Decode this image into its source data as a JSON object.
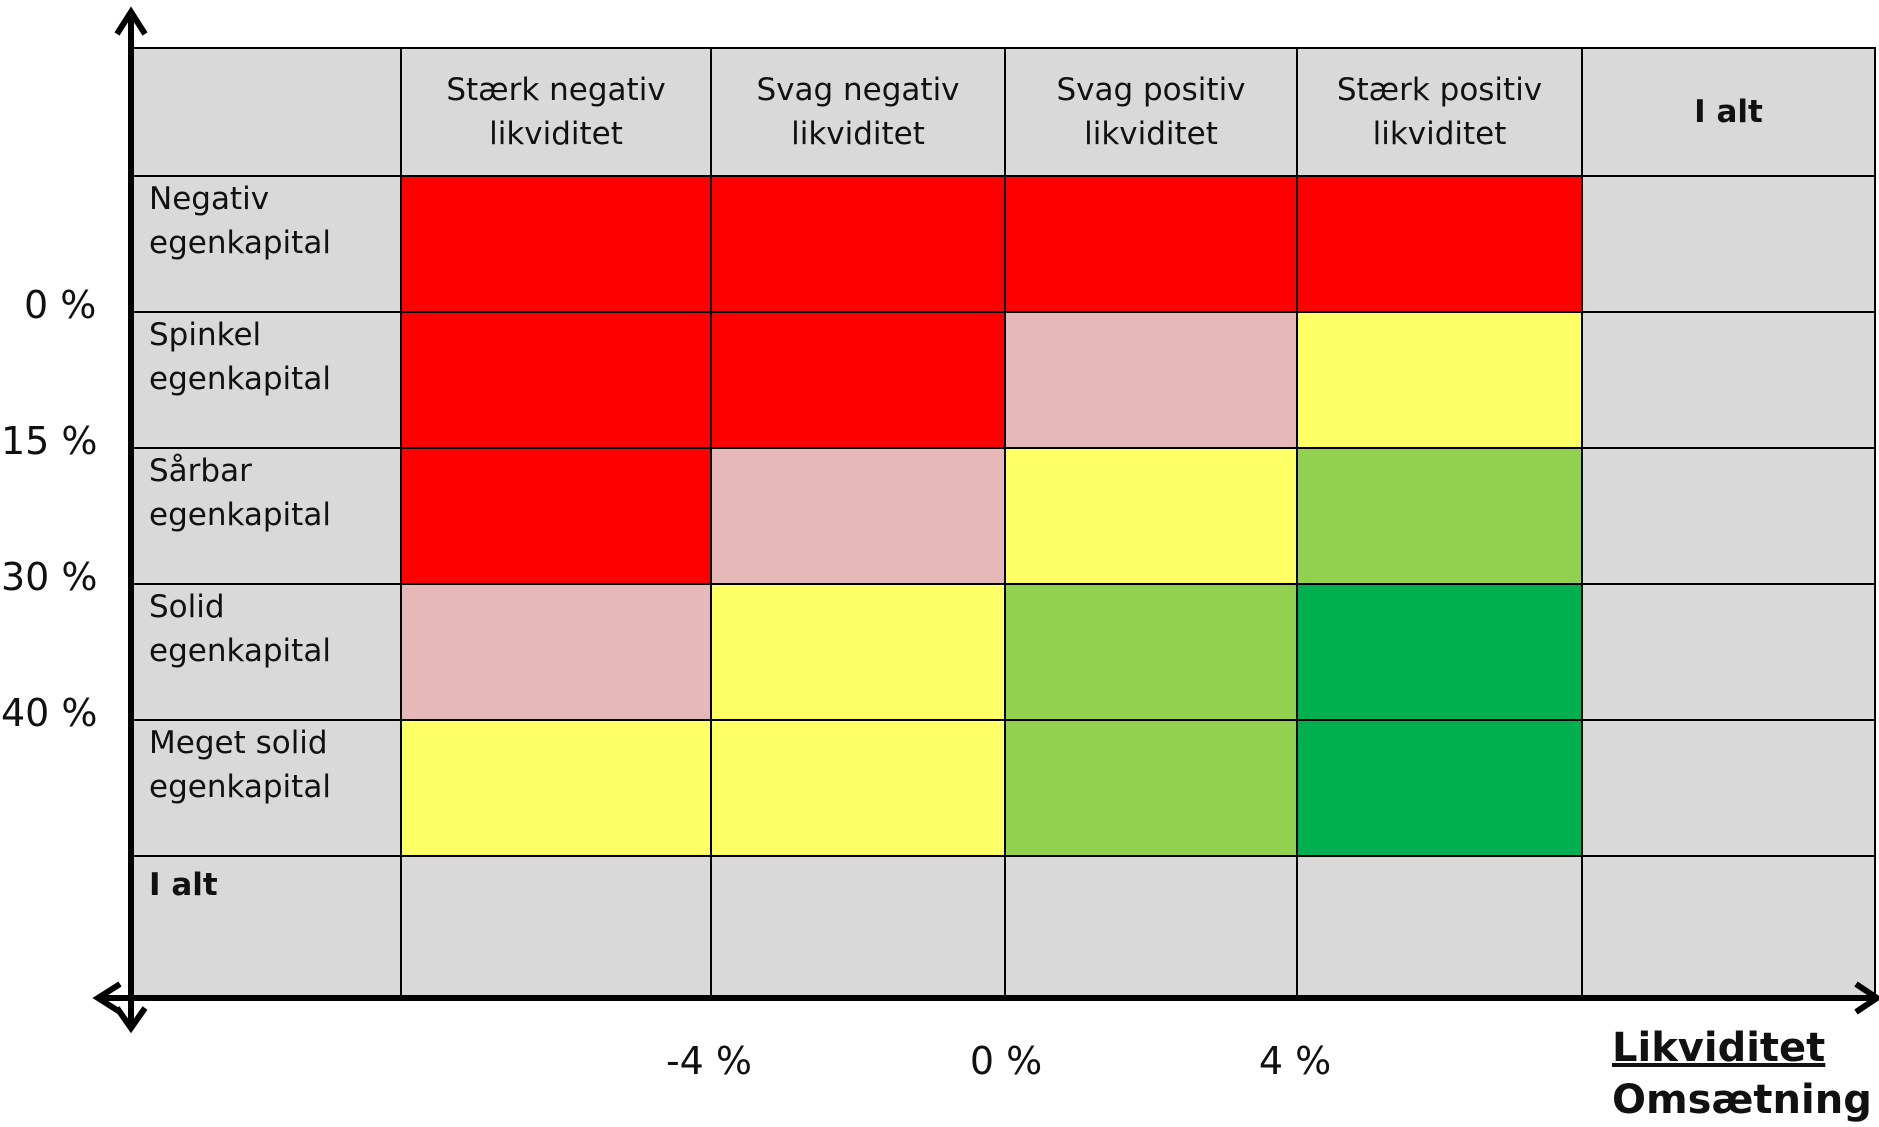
{
  "colors": {
    "header_bg": "#d9d9d9",
    "red": "#ff0000",
    "pink": "#e6b8b7",
    "yellow": "#ffff66",
    "light_green": "#92d050",
    "dark_green": "#00b050",
    "grid_line": "#000000"
  },
  "matrix": {
    "column_headers": [
      {
        "lines": [
          "Stærk negativ",
          "likviditet"
        ]
      },
      {
        "lines": [
          "Svag negativ",
          "likviditet"
        ]
      },
      {
        "lines": [
          "Svag positiv",
          "likviditet"
        ]
      },
      {
        "lines": [
          "Stærk positiv",
          "likviditet"
        ]
      },
      {
        "lines": [
          "I alt"
        ]
      }
    ],
    "row_headers": [
      {
        "lines": [
          "Negativ",
          "egenkapital"
        ]
      },
      {
        "lines": [
          "Spinkel",
          "egenkapital"
        ]
      },
      {
        "lines": [
          "Sårbar",
          "egenkapital"
        ]
      },
      {
        "lines": [
          "Solid",
          "egenkapital"
        ]
      },
      {
        "lines": [
          "Meget solid",
          "egenkapital"
        ]
      },
      {
        "lines": [
          "I alt"
        ]
      }
    ],
    "cell_colors": [
      [
        "red",
        "red",
        "red",
        "red",
        "header_bg"
      ],
      [
        "red",
        "red",
        "pink",
        "yellow",
        "header_bg"
      ],
      [
        "red",
        "pink",
        "yellow",
        "light_green",
        "header_bg"
      ],
      [
        "pink",
        "yellow",
        "light_green",
        "dark_green",
        "header_bg"
      ],
      [
        "yellow",
        "yellow",
        "light_green",
        "dark_green",
        "header_bg"
      ],
      [
        "header_bg",
        "header_bg",
        "header_bg",
        "header_bg",
        "header_bg"
      ]
    ]
  },
  "y_axis": {
    "ticks": [
      "0 %",
      "15 %",
      "30 %",
      "40 %"
    ]
  },
  "x_axis": {
    "ticks": [
      "-4 %",
      "0 %",
      "4 %"
    ],
    "title_lines": [
      "Likviditet",
      "Omsætning"
    ]
  }
}
